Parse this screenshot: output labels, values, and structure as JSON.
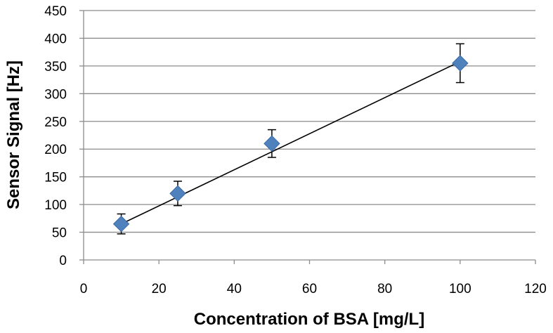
{
  "chart_data": {
    "type": "scatter",
    "title": "",
    "xlabel": "Concentration of BSA [mg/L]",
    "ylabel": "Sensor Signal [Hz]",
    "xlim": [
      0,
      120
    ],
    "ylim": [
      0,
      450
    ],
    "xticks": [
      0,
      20,
      40,
      60,
      80,
      100,
      120
    ],
    "yticks": [
      0,
      50,
      100,
      150,
      200,
      250,
      300,
      350,
      400,
      450
    ],
    "grid": "horizontal",
    "legend": "none",
    "series": [
      {
        "name": "Sensor Signal",
        "marker": "diamond",
        "color": "#4F81BD",
        "points": [
          {
            "x": 10,
            "y": 65,
            "err_low": 18,
            "err_high": 18
          },
          {
            "x": 25,
            "y": 120,
            "err_low": 22,
            "err_high": 22
          },
          {
            "x": 50,
            "y": 210,
            "err_low": 25,
            "err_high": 25
          },
          {
            "x": 100,
            "y": 355,
            "err_low": 35,
            "err_high": 35
          }
        ]
      }
    ],
    "trendline": {
      "type": "linear",
      "x_start": 10,
      "y_start": 65,
      "x_end": 100,
      "y_end": 358,
      "color": "#000000"
    }
  }
}
